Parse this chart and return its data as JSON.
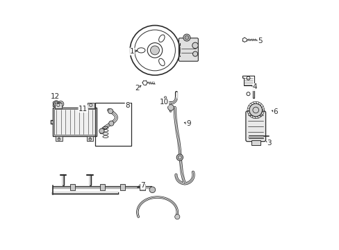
{
  "background_color": "#ffffff",
  "line_color": "#2a2a2a",
  "fig_width": 4.89,
  "fig_height": 3.6,
  "dpi": 100,
  "label_positions": {
    "1": [
      0.365,
      0.795,
      0.395,
      0.805
    ],
    "2": [
      0.352,
      0.645,
      0.375,
      0.658
    ],
    "3": [
      0.898,
      0.43,
      0.878,
      0.438
    ],
    "4": [
      0.845,
      0.66,
      0.835,
      0.67
    ],
    "5": [
      0.862,
      0.84,
      0.84,
      0.84
    ],
    "6": [
      0.925,
      0.555,
      0.9,
      0.56
    ],
    "7": [
      0.395,
      0.255,
      0.37,
      0.242
    ],
    "8": [
      0.332,
      0.58,
      0.32,
      0.57
    ],
    "9": [
      0.573,
      0.505,
      0.552,
      0.51
    ],
    "10": [
      0.48,
      0.59,
      0.502,
      0.602
    ],
    "11": [
      0.153,
      0.565,
      0.13,
      0.558
    ],
    "12": [
      0.04,
      0.61,
      0.042,
      0.597
    ]
  }
}
